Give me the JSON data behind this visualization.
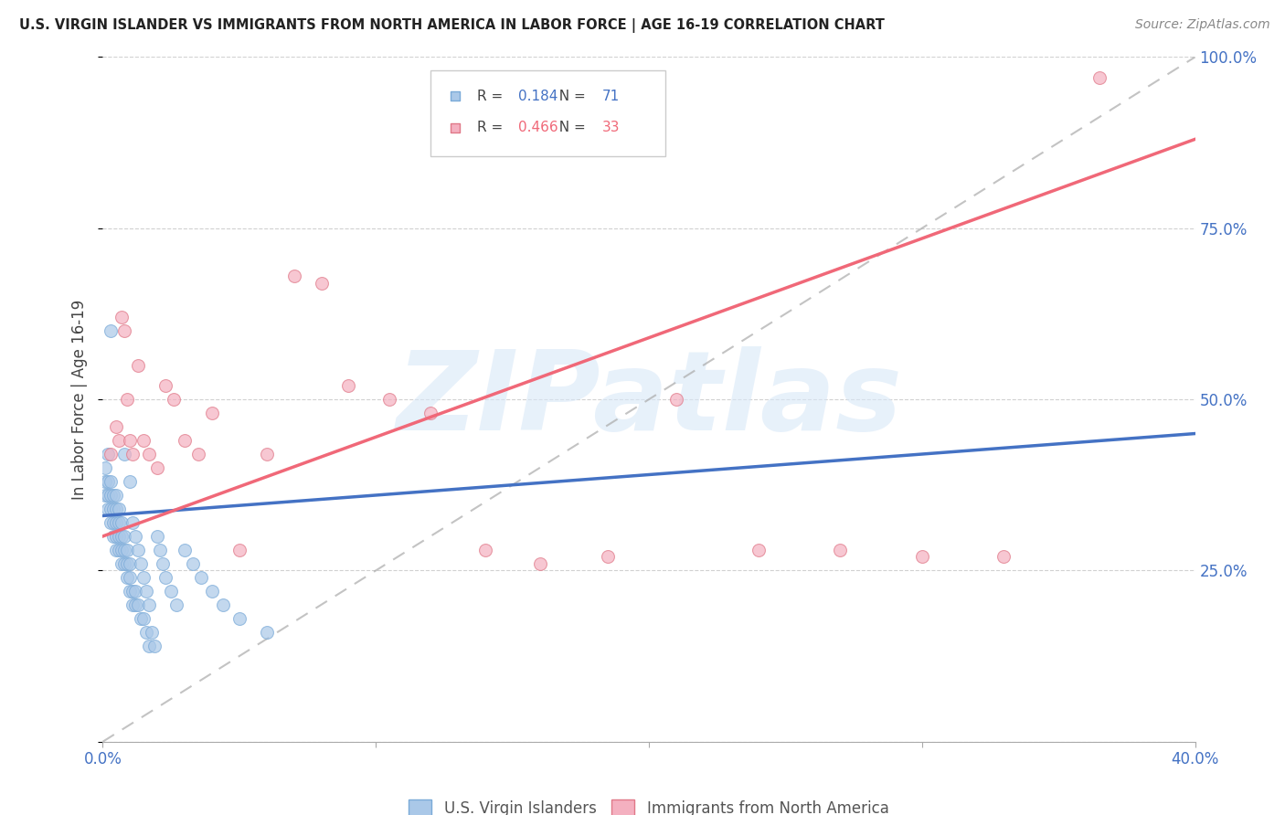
{
  "title": "U.S. VIRGIN ISLANDER VS IMMIGRANTS FROM NORTH AMERICA IN LABOR FORCE | AGE 16-19 CORRELATION CHART",
  "source": "Source: ZipAtlas.com",
  "ylabel": "In Labor Force | Age 16-19",
  "xmin": 0.0,
  "xmax": 0.4,
  "ymin": 0.0,
  "ymax": 1.0,
  "yticks": [
    0.0,
    0.25,
    0.5,
    0.75,
    1.0
  ],
  "ytick_labels_right": [
    "",
    "25.0%",
    "50.0%",
    "75.0%",
    "100.0%"
  ],
  "xticks": [
    0.0,
    0.1,
    0.2,
    0.3,
    0.4
  ],
  "xtick_labels": [
    "0.0%",
    "",
    "",
    "",
    "40.0%"
  ],
  "blue_fill": "#aac8e8",
  "blue_edge": "#7aaad8",
  "blue_line": "#4472c4",
  "pink_fill": "#f4b0c0",
  "pink_edge": "#e07888",
  "pink_line": "#f06878",
  "axis_label_color": "#4472c4",
  "grid_color": "#cccccc",
  "ref_line_color": "#aaaaaa",
  "watermark": "ZIPatlas",
  "watermark_color": "#d8e8f8",
  "R_blue": "0.184",
  "N_blue": "71",
  "R_pink": "0.466",
  "N_pink": "33",
  "blue_x": [
    0.001,
    0.001,
    0.001,
    0.002,
    0.002,
    0.002,
    0.002,
    0.003,
    0.003,
    0.003,
    0.003,
    0.003,
    0.004,
    0.004,
    0.004,
    0.004,
    0.005,
    0.005,
    0.005,
    0.005,
    0.005,
    0.006,
    0.006,
    0.006,
    0.006,
    0.007,
    0.007,
    0.007,
    0.007,
    0.008,
    0.008,
    0.008,
    0.008,
    0.009,
    0.009,
    0.009,
    0.01,
    0.01,
    0.01,
    0.01,
    0.011,
    0.011,
    0.011,
    0.012,
    0.012,
    0.012,
    0.013,
    0.013,
    0.014,
    0.014,
    0.015,
    0.015,
    0.016,
    0.016,
    0.017,
    0.017,
    0.018,
    0.019,
    0.02,
    0.021,
    0.022,
    0.023,
    0.025,
    0.027,
    0.03,
    0.033,
    0.036,
    0.04,
    0.044,
    0.05,
    0.06
  ],
  "blue_y": [
    0.36,
    0.38,
    0.4,
    0.34,
    0.36,
    0.38,
    0.42,
    0.32,
    0.34,
    0.36,
    0.38,
    0.6,
    0.3,
    0.32,
    0.34,
    0.36,
    0.28,
    0.3,
    0.32,
    0.34,
    0.36,
    0.28,
    0.3,
    0.32,
    0.34,
    0.26,
    0.28,
    0.3,
    0.32,
    0.26,
    0.28,
    0.3,
    0.42,
    0.24,
    0.26,
    0.28,
    0.22,
    0.24,
    0.26,
    0.38,
    0.2,
    0.22,
    0.32,
    0.2,
    0.22,
    0.3,
    0.2,
    0.28,
    0.18,
    0.26,
    0.18,
    0.24,
    0.16,
    0.22,
    0.14,
    0.2,
    0.16,
    0.14,
    0.3,
    0.28,
    0.26,
    0.24,
    0.22,
    0.2,
    0.28,
    0.26,
    0.24,
    0.22,
    0.2,
    0.18,
    0.16
  ],
  "pink_x": [
    0.003,
    0.005,
    0.006,
    0.007,
    0.008,
    0.009,
    0.01,
    0.011,
    0.013,
    0.015,
    0.017,
    0.02,
    0.023,
    0.026,
    0.03,
    0.035,
    0.04,
    0.05,
    0.06,
    0.07,
    0.08,
    0.09,
    0.105,
    0.12,
    0.14,
    0.16,
    0.185,
    0.21,
    0.24,
    0.27,
    0.3,
    0.33,
    0.365
  ],
  "pink_y": [
    0.42,
    0.46,
    0.44,
    0.62,
    0.6,
    0.5,
    0.44,
    0.42,
    0.55,
    0.44,
    0.42,
    0.4,
    0.52,
    0.5,
    0.44,
    0.42,
    0.48,
    0.28,
    0.42,
    0.68,
    0.67,
    0.52,
    0.5,
    0.48,
    0.28,
    0.26,
    0.27,
    0.5,
    0.28,
    0.28,
    0.27,
    0.27,
    0.97
  ],
  "blue_line_x": [
    0.0,
    0.4
  ],
  "blue_line_y": [
    0.33,
    0.45
  ],
  "pink_line_x": [
    0.0,
    0.4
  ],
  "pink_line_y": [
    0.3,
    0.88
  ]
}
